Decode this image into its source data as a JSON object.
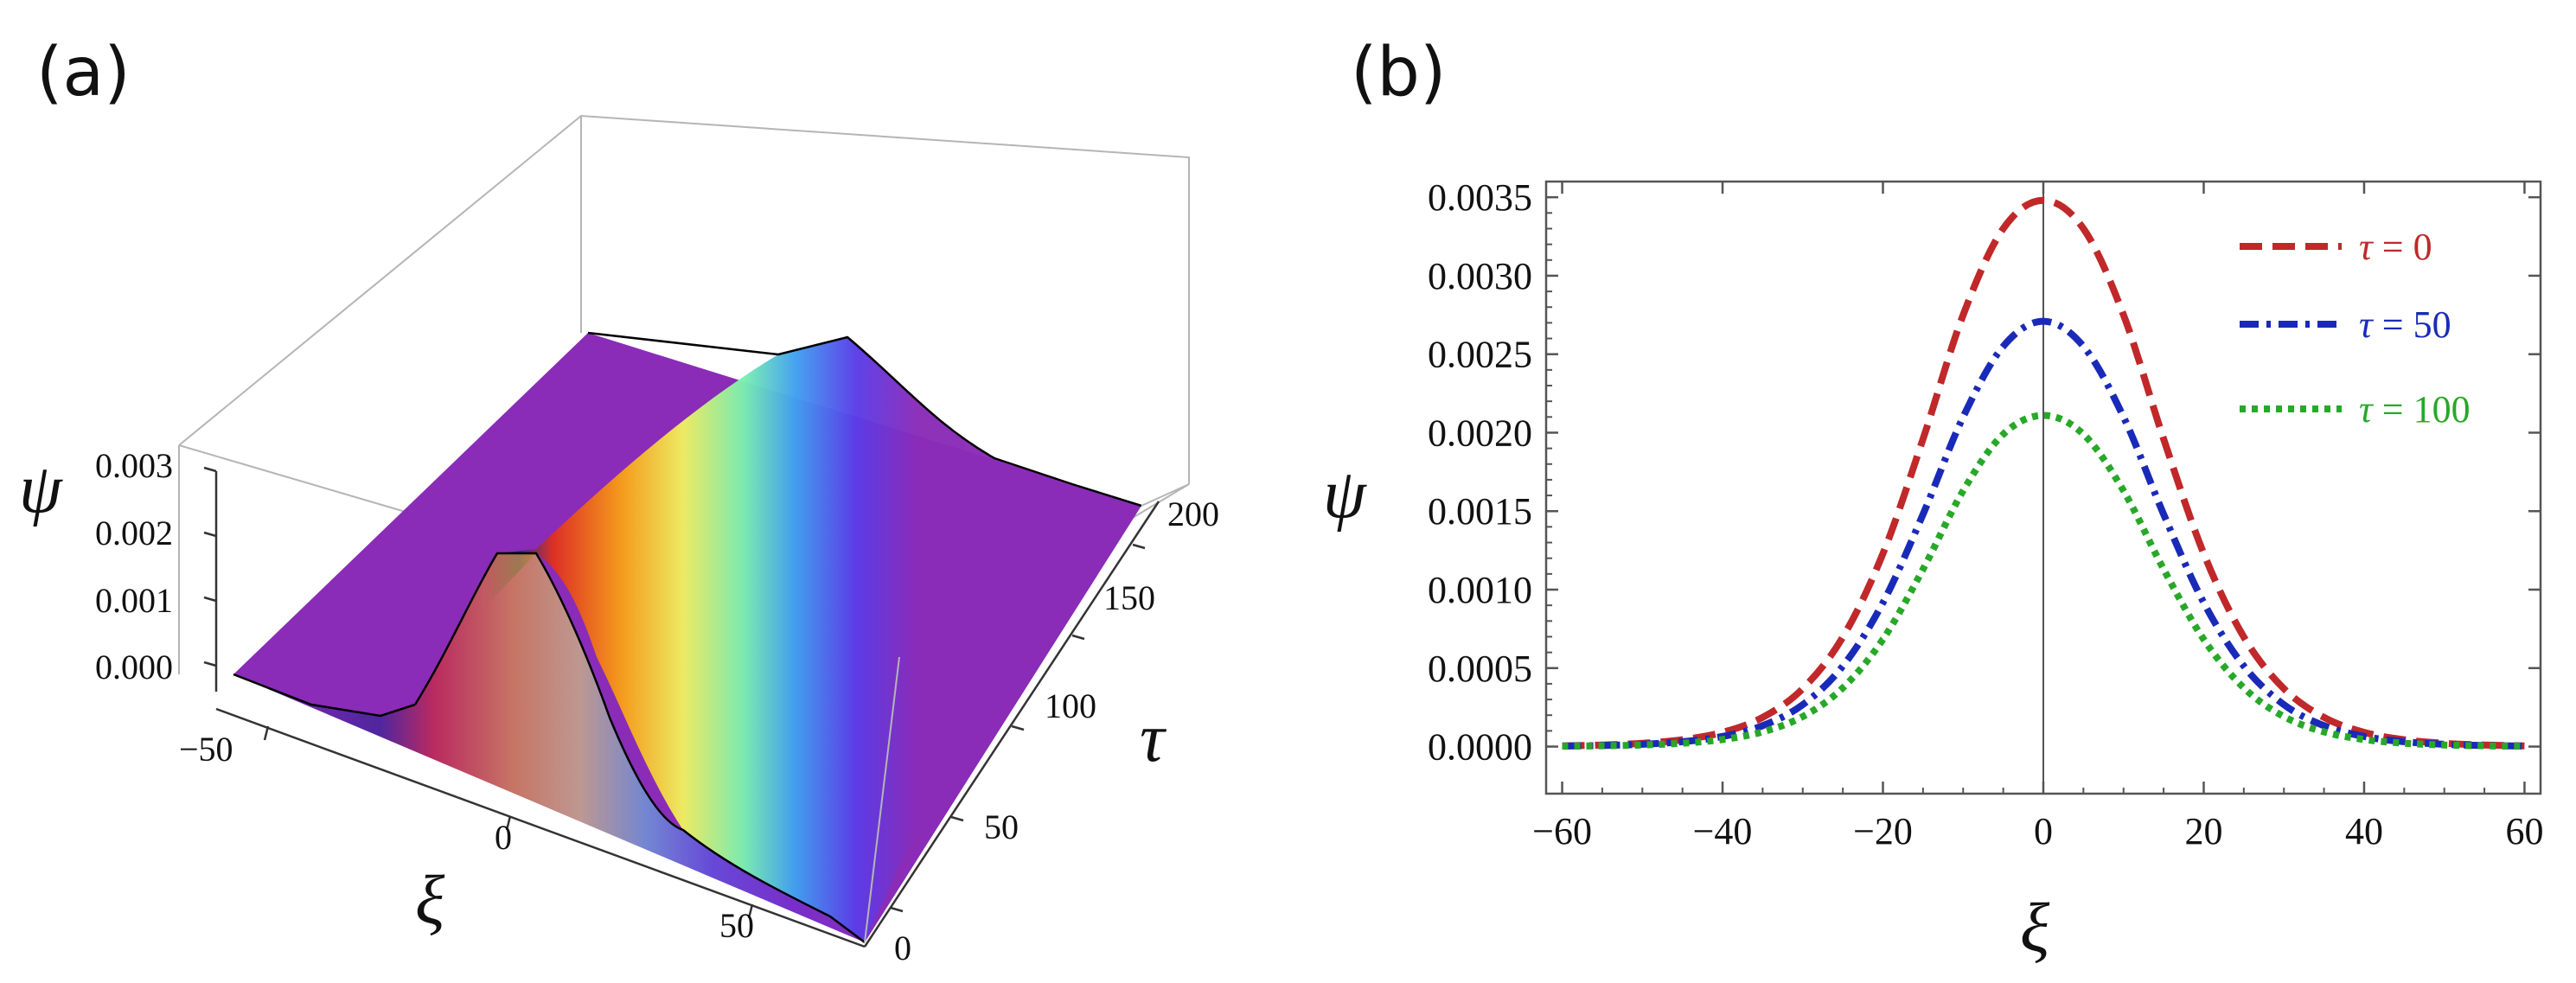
{
  "panels": {
    "a": {
      "label": "(a)"
    },
    "b": {
      "label": "(b)"
    }
  },
  "chart_data": [
    {
      "id": "a",
      "type": "surface3d",
      "title": "",
      "xlabel": "ξ",
      "ylabel": "τ",
      "zlabel": "ψ",
      "x_ticks": [
        "−50",
        "0",
        "50"
      ],
      "y_ticks": [
        "0",
        "50",
        "100",
        "150",
        "200"
      ],
      "z_ticks": [
        "0.000",
        "0.001",
        "0.002",
        "0.003"
      ],
      "xlim": [
        -70,
        70
      ],
      "ylim": [
        0,
        200
      ],
      "zlim": [
        0,
        0.0035
      ],
      "peak_values": {
        "tau_0": 0.00348,
        "tau_200": 0.00135
      },
      "colormap": "rainbow (violet base, red at peak)"
    },
    {
      "id": "b",
      "type": "line",
      "xlabel": "ξ",
      "ylabel": "ψ",
      "xlim": [
        -62,
        62
      ],
      "ylim": [
        -0.0003,
        0.0036
      ],
      "x_ticks": [
        "−60",
        "−40",
        "−20",
        "0",
        "20",
        "40",
        "60"
      ],
      "y_ticks": [
        "0.0000",
        "0.0005",
        "0.0010",
        "0.0015",
        "0.0020",
        "0.0025",
        "0.0030",
        "0.0035"
      ],
      "x": [
        -60,
        -55,
        -50,
        -45,
        -40,
        -35,
        -30,
        -25,
        -20,
        -15,
        -10,
        -5,
        0,
        5,
        10,
        15,
        20,
        25,
        30,
        35,
        40,
        45,
        50,
        55,
        60
      ],
      "series": [
        {
          "name": "τ = 0",
          "symbol": "τ",
          "value_label": " = 0",
          "color": "#c0282a",
          "dash": "dashed",
          "values": [
            4.6e-06,
            9.9e-06,
            2.09e-05,
            4.37e-05,
            9.07e-05,
            0.000186,
            0.000369,
            0.000698,
            0.00123,
            0.00196,
            0.00275,
            0.0033,
            0.00348,
            0.0033,
            0.00275,
            0.00196,
            0.00123,
            0.000698,
            0.000369,
            0.000186,
            9.07e-05,
            4.37e-05,
            2.09e-05,
            9.9e-06,
            4.6e-06
          ]
        },
        {
          "name": "τ = 50",
          "symbol": "τ",
          "value_label": " = 50",
          "color": "#1a2ab8",
          "dash": "dashdot",
          "values": [
            3.2e-06,
            7e-06,
            1.47e-05,
            3.09e-05,
            6.44e-05,
            0.000133,
            0.000267,
            0.000513,
            0.000917,
            0.00148,
            0.0021,
            0.00255,
            0.00271,
            0.00255,
            0.0021,
            0.00148,
            0.000917,
            0.000513,
            0.000267,
            0.000133,
            6.44e-05,
            3.09e-05,
            1.47e-05,
            7e-06,
            3.2e-06
          ]
        },
        {
          "name": "τ = 100",
          "symbol": "τ",
          "value_label": " = 100",
          "color": "#28a828",
          "dash": "dotted",
          "values": [
            2.2e-06,
            4.7e-06,
            1.01e-05,
            2.14e-05,
            4.51e-05,
            9.38e-05,
            0.000191,
            0.000374,
            0.000683,
            0.00113,
            0.00163,
            0.00199,
            0.00211,
            0.00199,
            0.00163,
            0.00113,
            0.000683,
            0.000374,
            0.000191,
            9.38e-05,
            4.51e-05,
            2.14e-05,
            1.01e-05,
            4.7e-06,
            2.2e-06
          ]
        }
      ],
      "legend_position": "top-right",
      "vertical_reference_line_at": 0
    }
  ]
}
